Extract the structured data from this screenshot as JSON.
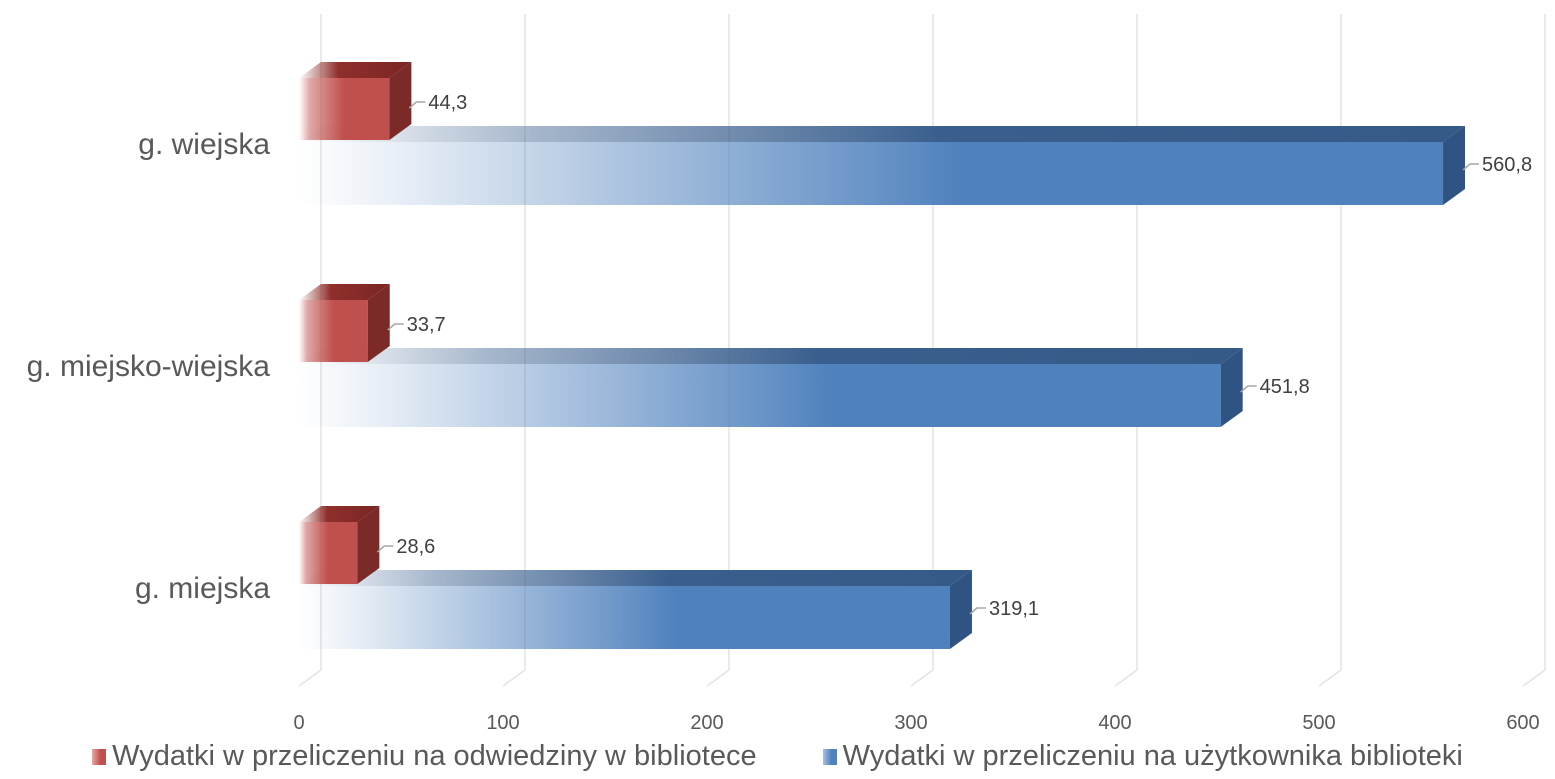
{
  "chart_data": {
    "type": "bar",
    "orientation": "horizontal",
    "three_d": true,
    "categories": [
      "g. wiejska",
      "g. miejsko-wiejska",
      "g. miejska"
    ],
    "series": [
      {
        "name": "Wydatki w przeliczeniu na odwiedziny w bibliotece",
        "values": [
          44.3,
          33.7,
          28.6
        ],
        "labels": [
          "44,3",
          "33,7",
          "28,6"
        ],
        "color": "#C0504D"
      },
      {
        "name": "Wydatki w przeliczeniu na użytkownika biblioteki",
        "values": [
          560.8,
          451.8,
          319.1
        ],
        "labels": [
          "560,8",
          "451,8",
          "319,1"
        ],
        "color": "#4F81BD"
      }
    ],
    "x_ticks": [
      "0",
      "100",
      "200",
      "300",
      "400",
      "500",
      "600"
    ],
    "xlim": [
      0,
      600
    ],
    "grid": true,
    "legend_position": "bottom"
  }
}
